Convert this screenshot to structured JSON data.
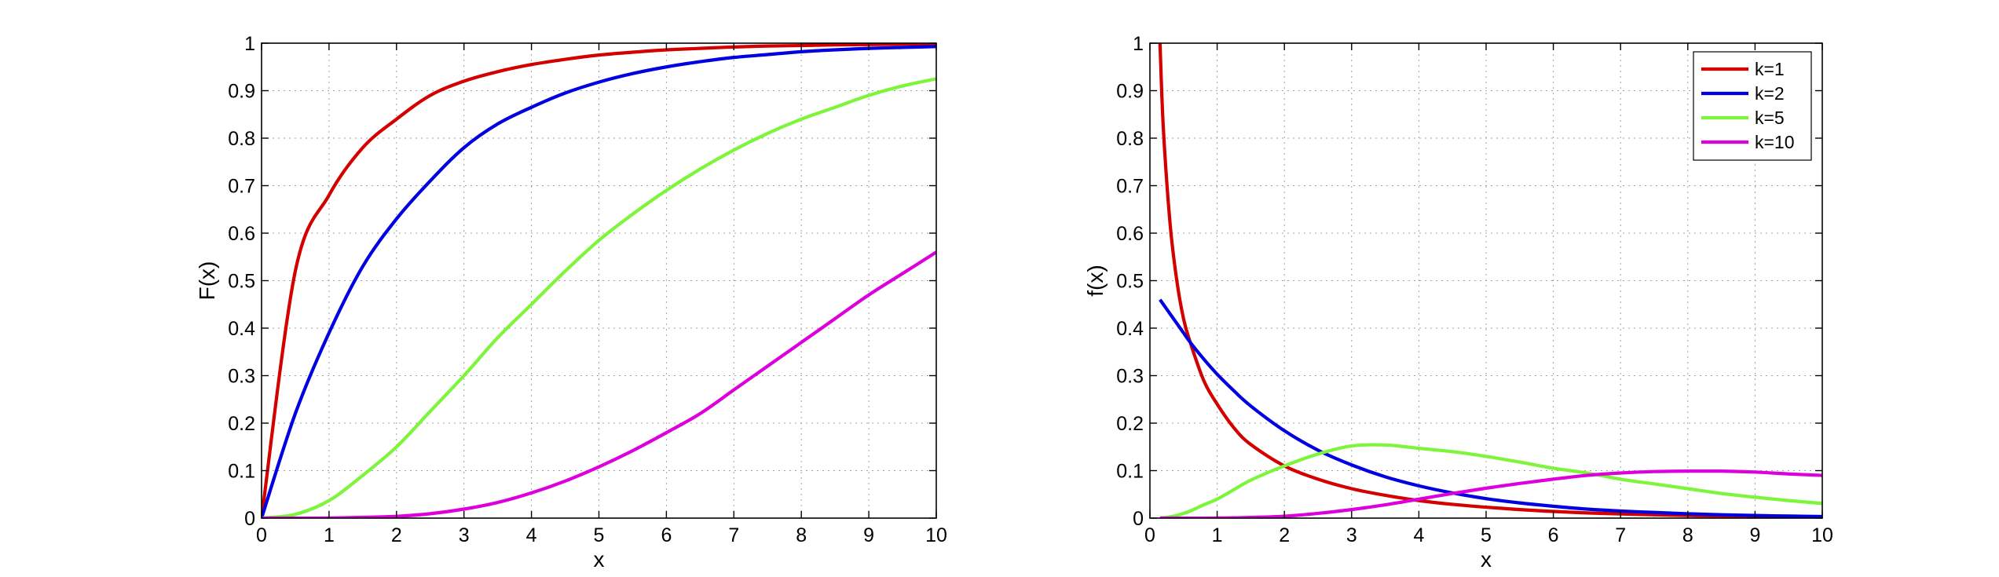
{
  "chart_data": [
    {
      "type": "line",
      "title": "",
      "xlabel": "x",
      "ylabel": "F(x)",
      "xlim": [
        0,
        10
      ],
      "ylim": [
        0,
        1
      ],
      "xticks": [
        0,
        1,
        2,
        3,
        4,
        5,
        6,
        7,
        8,
        9,
        10
      ],
      "yticks": [
        0,
        0.1,
        0.2,
        0.3,
        0.4,
        0.5,
        0.6,
        0.7,
        0.8,
        0.9,
        1
      ],
      "xtick_labels": [
        "0",
        "1",
        "2",
        "3",
        "4",
        "5",
        "6",
        "7",
        "8",
        "9",
        "10"
      ],
      "ytick_labels": [
        "0",
        "0.1",
        "0.2",
        "0.3",
        "0.4",
        "0.5",
        "0.6",
        "0.7",
        "0.8",
        "0.9",
        "1"
      ],
      "grid": true,
      "legend": null,
      "x": [
        0,
        0.5,
        1,
        1.5,
        2,
        2.5,
        3,
        3.5,
        4,
        4.5,
        5,
        5.5,
        6,
        6.5,
        7,
        7.5,
        8,
        8.5,
        9,
        9.5,
        10
      ],
      "series": [
        {
          "color": "#d40000",
          "values": [
            0,
            0.52,
            0.68,
            0.78,
            0.84,
            0.89,
            0.92,
            0.94,
            0.955,
            0.966,
            0.975,
            0.981,
            0.986,
            0.989,
            0.992,
            0.994,
            0.995,
            0.9965,
            0.997,
            0.998,
            0.998
          ]
        },
        {
          "color": "#0000e0",
          "values": [
            0,
            0.22,
            0.39,
            0.53,
            0.63,
            0.71,
            0.78,
            0.83,
            0.865,
            0.895,
            0.918,
            0.936,
            0.95,
            0.961,
            0.97,
            0.976,
            0.982,
            0.986,
            0.989,
            0.991,
            0.993
          ]
        },
        {
          "color": "#7cf53a",
          "values": [
            0,
            0.008,
            0.037,
            0.09,
            0.15,
            0.225,
            0.3,
            0.38,
            0.45,
            0.52,
            0.585,
            0.64,
            0.69,
            0.735,
            0.775,
            0.81,
            0.84,
            0.865,
            0.89,
            0.91,
            0.925
          ]
        },
        {
          "color": "#dd00dd",
          "values": [
            0,
            0,
            0.0002,
            0.0017,
            0.0037,
            0.0093,
            0.019,
            0.033,
            0.053,
            0.078,
            0.108,
            0.142,
            0.18,
            0.22,
            0.27,
            0.32,
            0.37,
            0.42,
            0.47,
            0.515,
            0.56
          ]
        }
      ]
    },
    {
      "type": "line",
      "title": "",
      "xlabel": "x",
      "ylabel": "f(x)",
      "xlim": [
        0,
        10
      ],
      "ylim": [
        0,
        1
      ],
      "xticks": [
        0,
        1,
        2,
        3,
        4,
        5,
        6,
        7,
        8,
        9,
        10
      ],
      "yticks": [
        0,
        0.1,
        0.2,
        0.3,
        0.4,
        0.5,
        0.6,
        0.7,
        0.8,
        0.9,
        1
      ],
      "xtick_labels": [
        "0",
        "1",
        "2",
        "3",
        "4",
        "5",
        "6",
        "7",
        "8",
        "9",
        "10"
      ],
      "ytick_labels": [
        "0",
        "0.1",
        "0.2",
        "0.3",
        "0.4",
        "0.5",
        "0.6",
        "0.7",
        "0.8",
        "0.9",
        "1"
      ],
      "grid": true,
      "legend": "top-right",
      "x": [
        0.15,
        0.2,
        0.3,
        0.4,
        0.5,
        0.6,
        0.8,
        1,
        1.25,
        1.5,
        2,
        2.5,
        3,
        3.5,
        4,
        4.5,
        5,
        5.5,
        6,
        6.5,
        7,
        7.5,
        8,
        8.5,
        9,
        9.5,
        10
      ],
      "series": [
        {
          "name": "k=1",
          "color": "#d40000",
          "values": [
            1.0,
            0.82,
            0.62,
            0.5,
            0.42,
            0.37,
            0.29,
            0.24,
            0.19,
            0.155,
            0.11,
            0.082,
            0.062,
            0.048,
            0.037,
            0.029,
            0.023,
            0.018,
            0.014,
            0.011,
            0.0088,
            0.007,
            0.0055,
            0.0044,
            0.0035,
            0.0028,
            0.0022
          ]
        },
        {
          "name": "k=2",
          "color": "#0000e0",
          "values": [
            0.46,
            0.45,
            0.43,
            0.41,
            0.39,
            0.37,
            0.335,
            0.303,
            0.268,
            0.236,
            0.184,
            0.143,
            0.112,
            0.087,
            0.068,
            0.053,
            0.041,
            0.032,
            0.025,
            0.019,
            0.015,
            0.012,
            0.0092,
            0.0071,
            0.0056,
            0.0043,
            0.0034
          ]
        },
        {
          "name": "k=5",
          "color": "#7cf53a",
          "values": [
            0.0004,
            0.0009,
            0.0027,
            0.0058,
            0.0099,
            0.015,
            0.028,
            0.04,
            0.06,
            0.08,
            0.11,
            0.135,
            0.152,
            0.154,
            0.147,
            0.14,
            0.13,
            0.118,
            0.105,
            0.095,
            0.082,
            0.072,
            0.062,
            0.052,
            0.044,
            0.037,
            0.031
          ]
        },
        {
          "name": "k=10",
          "color": "#dd00dd",
          "values": [
            0,
            0,
            0,
            0,
            0,
            0,
            0.0001,
            0.0002,
            0.0006,
            0.0014,
            0.004,
            0.01,
            0.018,
            0.028,
            0.04,
            0.052,
            0.063,
            0.073,
            0.082,
            0.09,
            0.095,
            0.098,
            0.099,
            0.099,
            0.097,
            0.093,
            0.09
          ]
        }
      ]
    }
  ]
}
